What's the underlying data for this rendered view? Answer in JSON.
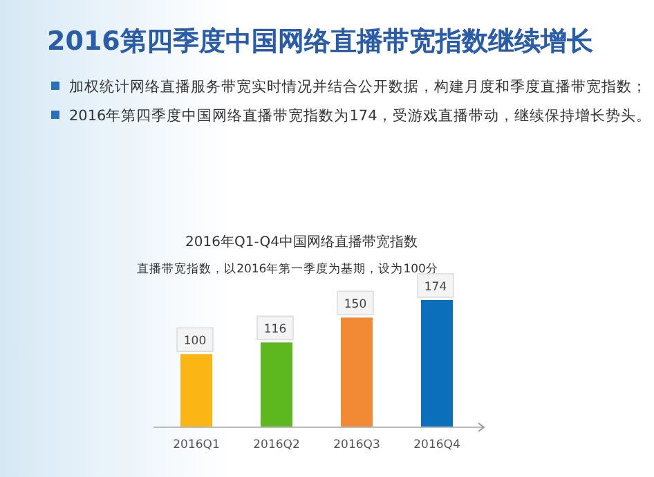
{
  "chart_data": {
    "type": "bar",
    "title": "2016第四季度中国网络直播带宽指数继续增长",
    "subtitle": "2016年Q1-Q4中国网络直播带宽指数",
    "annotations": [
      "加权统计网络直播服务带宽实时情况并结合公开数据，构建月度和季度直播带宽指数；",
      "2016年第四季度中国网络直播带宽指数为174，受游戏直播带动，继续保持增长势头。",
      "直播带宽指数，以2016年第一季度为基期，设为100分"
    ],
    "categories": [
      "2016Q1",
      "2016Q2",
      "2016Q3",
      "2016Q4"
    ],
    "values": [
      100,
      116,
      150,
      174
    ],
    "colors": [
      "#fbb615",
      "#5cb81e",
      "#f28a35",
      "#0b6fbc"
    ],
    "data_labels": true
  }
}
